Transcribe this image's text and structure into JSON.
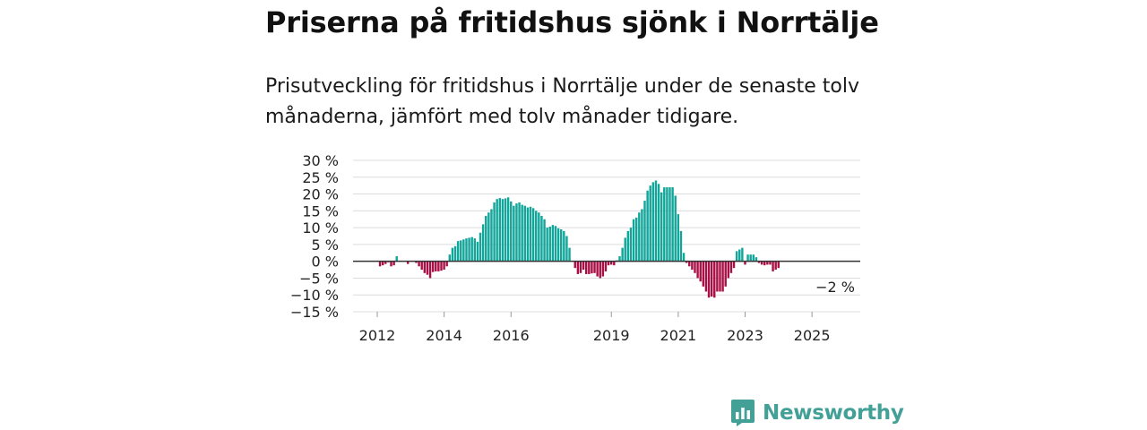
{
  "title": "Priserna på fritidshus sjönk i Norrtälje",
  "subtitle": "Prisutveckling för fritidshus i Norrtälje under de senaste tolv månaderna, jämfört med tolv månader tidigare.",
  "brand": {
    "name": "Newsworthy",
    "color": "#42a097",
    "icon": "newsworthy-logo-icon"
  },
  "colors": {
    "positive": "#12a59a",
    "negative": "#a80f45",
    "grid": "#dcdcdc",
    "zero": "#333333"
  },
  "chart_data": {
    "type": "bar",
    "title": "",
    "xlabel": "",
    "ylabel": "",
    "ylim": [
      -15,
      30
    ],
    "yticks": [
      30,
      25,
      20,
      15,
      10,
      5,
      0,
      -5,
      -10,
      -15
    ],
    "ytick_labels": [
      "30 %",
      "25 %",
      "20 %",
      "15 %",
      "10 %",
      "5 %",
      "0 %",
      "−5 %",
      "−10 %",
      "−15 %"
    ],
    "start_year": 2012,
    "start_month": 1,
    "xtick_years": [
      2012,
      2014,
      2016,
      2019,
      2021,
      2023,
      2025
    ],
    "xtick_labels": [
      "2012",
      "2014",
      "2016",
      "2019",
      "2021",
      "2023",
      "2025"
    ],
    "annotation": {
      "label": "−2 %",
      "value": -2
    },
    "values": [
      0,
      -1.5,
      -1.2,
      -0.8,
      -0.3,
      -1.5,
      -1.2,
      1.5,
      0,
      0,
      0,
      -0.8,
      0,
      0,
      -0.5,
      -1.5,
      -2.5,
      -3.5,
      -4,
      -5,
      -3.2,
      -3,
      -3,
      -2.8,
      -2.5,
      -1.5,
      2,
      4,
      4.5,
      6,
      6.2,
      6.5,
      6.8,
      7,
      7.2,
      6.8,
      5.8,
      8.5,
      11,
      13.5,
      14.5,
      15.5,
      17.5,
      18.5,
      18.8,
      18.5,
      18.7,
      19,
      17.8,
      16.5,
      17.2,
      17.5,
      16.8,
      16.5,
      16,
      16.2,
      15.8,
      15,
      14.5,
      13.5,
      12.5,
      10,
      10.3,
      10.8,
      10.5,
      9.8,
      9.5,
      9,
      7.5,
      4,
      0,
      -2,
      -3.8,
      -3.5,
      -2.5,
      -3.8,
      -3.8,
      -3.6,
      -3.5,
      -4.5,
      -5,
      -4.5,
      -3,
      -1.2,
      -1,
      -1.2,
      0.3,
      1.5,
      4,
      7,
      9,
      10,
      12.5,
      13,
      14.5,
      15.5,
      18,
      21,
      22.5,
      23.5,
      24,
      23,
      20.5,
      22,
      22,
      22,
      22,
      19.5,
      14,
      9,
      2.5,
      -0.5,
      -1.5,
      -2.5,
      -3.5,
      -5,
      -6,
      -7.5,
      -9,
      -10.8,
      -10.5,
      -10.8,
      -9,
      -9,
      -9,
      -7.5,
      -5,
      -3.5,
      -2,
      3,
      3.5,
      4,
      -1,
      2,
      2,
      2,
      1.2,
      -0.5,
      -1,
      -1.2,
      -1,
      -1,
      -3,
      -2.5,
      -2
    ]
  }
}
